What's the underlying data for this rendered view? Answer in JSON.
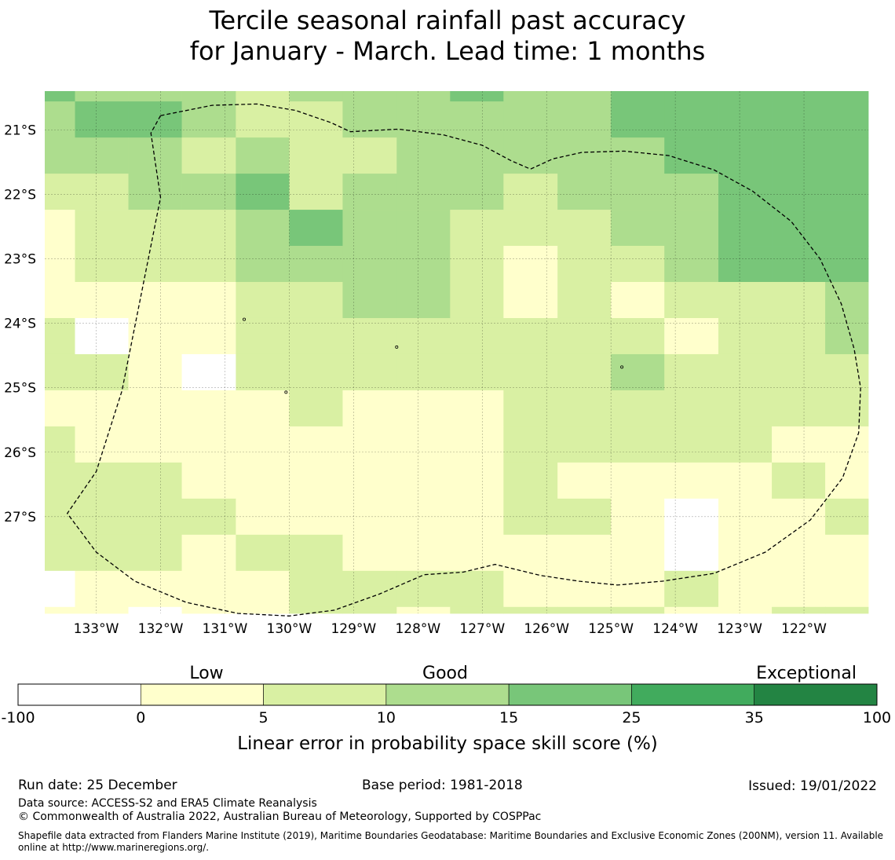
{
  "title": {
    "line1": "Tercile seasonal rainfall past accuracy",
    "line2": "for January - March. Lead time: 1 months"
  },
  "map": {
    "lon_range": [
      -133.8,
      -121.0
    ],
    "lat_range": [
      -28.5,
      -20.4
    ],
    "lon_ticks": [
      -133,
      -132,
      -131,
      -130,
      -129,
      -128,
      -127,
      -126,
      -125,
      -124,
      -123,
      -122
    ],
    "lon_labels": [
      "133°W",
      "132°W",
      "131°W",
      "130°W",
      "129°W",
      "128°W",
      "127°W",
      "126°W",
      "125°W",
      "124°W",
      "123°W",
      "122°W"
    ],
    "lat_ticks": [
      -21,
      -22,
      -23,
      -24,
      -25,
      -26,
      -27
    ],
    "lat_labels": [
      "21°S",
      "22°S",
      "23°S",
      "24°S",
      "25°S",
      "26°S",
      "27°S"
    ],
    "grid": {
      "col_lon_edges": [
        -133.8,
        -133.33,
        -132.5,
        -131.67,
        -130.83,
        -130.0,
        -129.17,
        -128.33,
        -127.5,
        -126.67,
        -125.83,
        -125.0,
        -124.17,
        -123.33,
        -122.5,
        -121.67,
        -121.0
      ],
      "row_lat_edges": [
        -20.4,
        -20.56,
        -21.12,
        -21.68,
        -22.24,
        -22.8,
        -23.36,
        -23.92,
        -24.48,
        -25.04,
        -25.6,
        -26.16,
        -26.72,
        -27.28,
        -27.84,
        -28.4,
        -28.54
      ],
      "rows": [
        [
          15,
          10,
          10,
          10,
          5,
          10,
          10,
          10,
          15,
          10,
          10,
          15,
          15,
          15,
          15,
          15
        ],
        [
          10,
          15,
          15,
          10,
          5,
          5,
          10,
          10,
          10,
          10,
          10,
          15,
          15,
          15,
          15,
          15
        ],
        [
          10,
          10,
          10,
          5,
          10,
          5,
          5,
          10,
          10,
          10,
          10,
          10,
          15,
          15,
          15,
          15
        ],
        [
          5,
          5,
          10,
          10,
          15,
          5,
          10,
          10,
          10,
          5,
          10,
          10,
          10,
          15,
          15,
          15
        ],
        [
          0,
          5,
          5,
          5,
          10,
          15,
          10,
          10,
          5,
          5,
          5,
          10,
          10,
          15,
          15,
          15
        ],
        [
          0,
          5,
          5,
          5,
          10,
          10,
          10,
          10,
          5,
          0,
          5,
          5,
          10,
          15,
          15,
          15
        ],
        [
          0,
          0,
          0,
          0,
          5,
          5,
          10,
          10,
          5,
          0,
          5,
          0,
          5,
          5,
          5,
          10
        ],
        [
          5,
          -1,
          0,
          0,
          5,
          5,
          5,
          5,
          5,
          5,
          5,
          5,
          0,
          5,
          5,
          10
        ],
        [
          5,
          5,
          0,
          -1,
          5,
          5,
          5,
          5,
          5,
          5,
          5,
          10,
          5,
          5,
          5,
          5
        ],
        [
          0,
          0,
          0,
          0,
          0,
          5,
          0,
          0,
          0,
          5,
          5,
          5,
          5,
          5,
          5,
          5
        ],
        [
          5,
          0,
          0,
          0,
          0,
          0,
          0,
          0,
          0,
          5,
          5,
          5,
          5,
          5,
          0,
          0
        ],
        [
          5,
          5,
          5,
          0,
          0,
          0,
          0,
          0,
          0,
          5,
          0,
          0,
          0,
          0,
          5,
          0
        ],
        [
          5,
          5,
          5,
          5,
          0,
          0,
          0,
          0,
          0,
          5,
          5,
          0,
          -1,
          0,
          0,
          5
        ],
        [
          5,
          5,
          5,
          0,
          5,
          5,
          0,
          0,
          0,
          0,
          0,
          0,
          -1,
          0,
          0,
          0
        ],
        [
          -1,
          0,
          0,
          0,
          0,
          5,
          5,
          5,
          5,
          0,
          0,
          0,
          5,
          0,
          0,
          0
        ],
        [
          0,
          0,
          -1,
          0,
          0,
          5,
          5,
          0,
          5,
          5,
          5,
          5,
          0,
          0,
          5,
          5
        ]
      ]
    },
    "boundary_lonlat": [
      [
        -132.0,
        -20.78
      ],
      [
        -131.2,
        -20.62
      ],
      [
        -130.5,
        -20.6
      ],
      [
        -129.9,
        -20.7
      ],
      [
        -129.35,
        -20.89
      ],
      [
        -129.05,
        -21.03
      ],
      [
        -128.3,
        -20.99
      ],
      [
        -127.6,
        -21.08
      ],
      [
        -127.0,
        -21.24
      ],
      [
        -126.55,
        -21.48
      ],
      [
        -126.25,
        -21.61
      ],
      [
        -125.9,
        -21.45
      ],
      [
        -125.45,
        -21.35
      ],
      [
        -124.8,
        -21.33
      ],
      [
        -124.1,
        -21.4
      ],
      [
        -123.4,
        -21.62
      ],
      [
        -122.8,
        -21.95
      ],
      [
        -122.2,
        -22.42
      ],
      [
        -121.75,
        -23.0
      ],
      [
        -121.42,
        -23.7
      ],
      [
        -121.22,
        -24.4
      ],
      [
        -121.12,
        -25.0
      ],
      [
        -121.15,
        -25.7
      ],
      [
        -121.4,
        -26.4
      ],
      [
        -121.9,
        -27.05
      ],
      [
        -122.6,
        -27.55
      ],
      [
        -123.4,
        -27.88
      ],
      [
        -124.2,
        -28.0
      ],
      [
        -124.9,
        -28.06
      ],
      [
        -125.5,
        -28.0
      ],
      [
        -126.1,
        -27.91
      ],
      [
        -126.8,
        -27.74
      ],
      [
        -127.3,
        -27.86
      ],
      [
        -127.9,
        -27.9
      ],
      [
        -128.6,
        -28.2
      ],
      [
        -129.3,
        -28.45
      ],
      [
        -130.0,
        -28.54
      ],
      [
        -130.8,
        -28.5
      ],
      [
        -131.6,
        -28.33
      ],
      [
        -132.4,
        -28.0
      ],
      [
        -133.0,
        -27.55
      ],
      [
        -133.45,
        -26.95
      ],
      [
        -133.0,
        -26.3
      ],
      [
        -132.6,
        -25.05
      ],
      [
        -132.4,
        -24.05
      ],
      [
        -132.2,
        -23.05
      ],
      [
        -132.0,
        -22.05
      ],
      [
        -132.15,
        -21.05
      ],
      [
        -132.0,
        -20.78
      ]
    ],
    "islands_lonlat": [
      [
        -130.7,
        -23.94
      ],
      [
        -128.33,
        -24.37
      ],
      [
        -124.83,
        -24.68
      ],
      [
        -130.05,
        -25.07
      ]
    ]
  },
  "colorbar": {
    "category_labels": [
      "Low",
      "Good",
      "Exceptional"
    ],
    "tick_labels": [
      "-100",
      "0",
      "5",
      "10",
      "15",
      "25",
      "35",
      "100"
    ],
    "colors": [
      "#ffffff",
      "#ffffcc",
      "#d9f0a3",
      "#addd8e",
      "#78c679",
      "#41ab5d",
      "#238443"
    ],
    "label": "Linear error in probability space skill score (%)"
  },
  "color_map": {
    "-1": "#ffffff",
    "0": "#ffffcc",
    "5": "#d9f0a3",
    "10": "#addd8e",
    "15": "#78c679",
    "25": "#41ab5d",
    "35": "#238443"
  },
  "footer": {
    "run_date": "Run date: 25 December",
    "base_period": "Base period: 1981-2018",
    "issued": "Issued: 19/01/2022",
    "data_source": "Data source: ACCESS-S2 and ERA5 Climate Reanalysis",
    "copyright": "© Commonwealth of Australia 2022, Australian Bureau of Meteorology, Supported by COSPPac",
    "shapefile": "Shapefile data extracted from Flanders Marine Institute (2019), Maritime Boundaries Geodatabase: Maritime Boundaries and Exclusive Economic Zones (200NM), version 11. Available online at http://www.marineregions.org/."
  }
}
